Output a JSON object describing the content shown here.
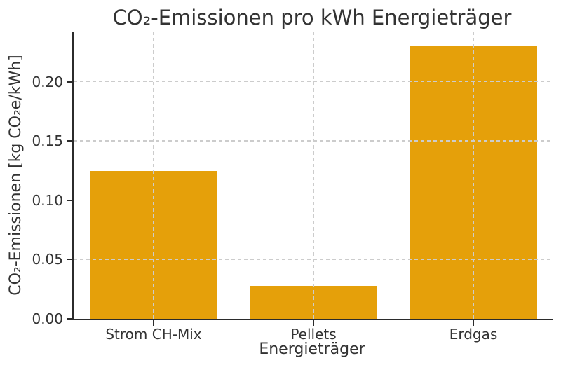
{
  "chart_data": {
    "type": "bar",
    "title": "CO₂-Emissionen pro kWh Energieträger",
    "xlabel": "Energieträger",
    "ylabel": "CO₂-Emissionen [kg CO₂e/kWh]",
    "categories": [
      "Strom CH-Mix",
      "Pellets",
      "Erdgas"
    ],
    "values": [
      0.125,
      0.028,
      0.23
    ],
    "ylim": [
      0,
      0.2426
    ],
    "yticks": [
      0,
      0.05,
      0.1,
      0.15,
      0.2
    ],
    "ytick_labels": [
      "0.00",
      "0.05",
      "0.10",
      "0.15",
      "0.20"
    ],
    "grid": {
      "style": "dashed",
      "axes": "both",
      "drawn_above_bars": true
    },
    "legend_position": "none",
    "bar_width_fraction": 0.8
  },
  "colors": {
    "bar": "#E5A00A",
    "grid": "#cccccc",
    "text": "#333333",
    "spine": "#2b2b2b",
    "background": "#ffffff"
  }
}
